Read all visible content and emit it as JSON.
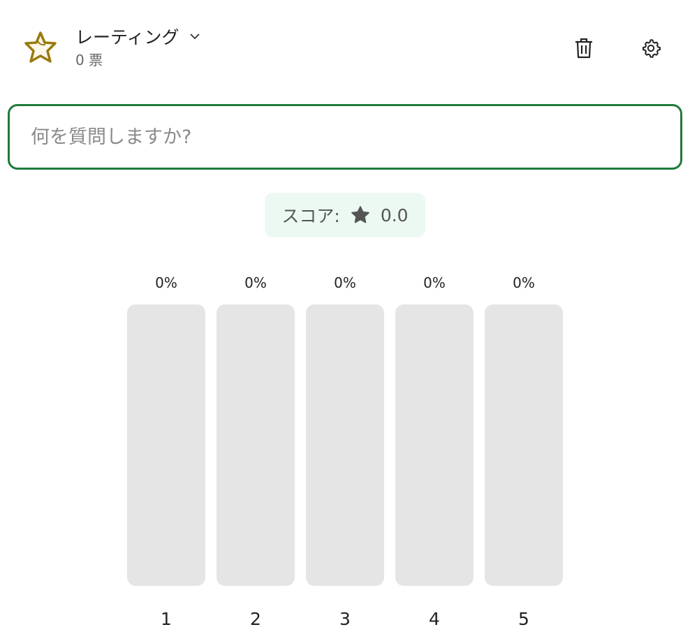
{
  "header": {
    "title": "レーティング",
    "votes": "0 票",
    "icons": {
      "logo": "star-outline-icon",
      "dropdown": "chevron-down-icon",
      "delete": "trash-icon",
      "settings": "gear-icon"
    }
  },
  "question": {
    "value": "",
    "placeholder": "何を質問しますか?"
  },
  "score": {
    "label": "スコア:",
    "value": "0.0",
    "icon": "star-filled-icon"
  },
  "ratings": [
    {
      "label": "1",
      "percent": "0%",
      "fraction": 0
    },
    {
      "label": "2",
      "percent": "0%",
      "fraction": 0
    },
    {
      "label": "3",
      "percent": "0%",
      "fraction": 0
    },
    {
      "label": "4",
      "percent": "0%",
      "fraction": 0
    },
    {
      "label": "5",
      "percent": "0%",
      "fraction": 0
    }
  ],
  "colors": {
    "accent": "#1f7a3a",
    "bar_empty": "#e5e5e5",
    "score_bg": "#ecf9f2",
    "logo_star": "#9a7a10"
  }
}
